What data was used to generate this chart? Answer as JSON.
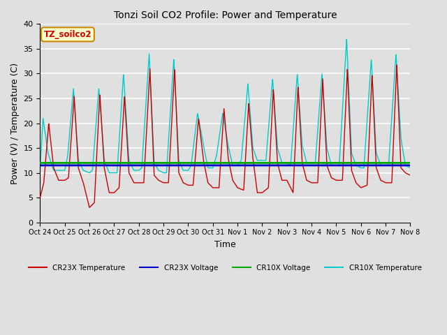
{
  "title": "Tonzi Soil CO2 Profile: Power and Temperature",
  "xlabel": "Time",
  "ylabel": "Power (V) / Temperature (C)",
  "xlim": [
    0,
    15
  ],
  "ylim": [
    0,
    40
  ],
  "yticks": [
    0,
    5,
    10,
    15,
    20,
    25,
    30,
    35,
    40
  ],
  "xtick_labels": [
    "Oct 24",
    "Oct 25",
    "Oct 26",
    "Oct 27",
    "Oct 28",
    "Oct 29",
    "Oct 30",
    "Oct 31",
    "Nov 1",
    "Nov 2",
    "Nov 3",
    "Nov 4",
    "Nov 5",
    "Nov 6",
    "Nov 7",
    "Nov 8"
  ],
  "background_color": "#e0e0e0",
  "grid_color": "#ffffff",
  "cr23x_voltage_value": 11.5,
  "cr10x_voltage_value": 12.0,
  "legend_labels": [
    "CR23X Temperature",
    "CR23X Voltage",
    "CR10X Voltage",
    "CR10X Temperature"
  ],
  "legend_colors": [
    "#cc0000",
    "#0000cc",
    "#00aa00",
    "#00cccc"
  ],
  "annotation_text": "TZ_soilco2",
  "annotation_bg": "#ffffcc",
  "annotation_border": "#cc8800",
  "cr23x_ctrl_t": [
    0.0,
    0.15,
    0.35,
    0.55,
    0.75,
    1.0,
    1.15,
    1.38,
    1.55,
    1.75,
    2.0,
    2.2,
    2.42,
    2.6,
    2.8,
    3.0,
    3.2,
    3.42,
    3.6,
    3.8,
    4.0,
    4.2,
    4.45,
    4.62,
    4.8,
    5.0,
    5.2,
    5.45,
    5.62,
    5.8,
    6.0,
    6.2,
    6.42,
    6.62,
    6.8,
    7.0,
    7.25,
    7.45,
    7.62,
    7.8,
    8.0,
    8.25,
    8.45,
    8.62,
    8.8,
    9.0,
    9.25,
    9.45,
    9.62,
    9.8,
    10.0,
    10.25,
    10.45,
    10.62,
    10.8,
    11.0,
    11.25,
    11.45,
    11.62,
    11.8,
    12.0,
    12.25,
    12.45,
    12.62,
    12.8,
    13.0,
    13.25,
    13.45,
    13.62,
    13.8,
    14.0,
    14.25,
    14.45,
    14.62,
    14.8,
    15.0
  ],
  "cr23x_ctrl_y": [
    5.0,
    8.0,
    20.0,
    11.0,
    8.5,
    8.5,
    9.0,
    25.5,
    11.0,
    8.0,
    3.0,
    4.0,
    26.0,
    11.0,
    6.0,
    6.0,
    7.0,
    25.5,
    10.0,
    8.0,
    8.0,
    8.0,
    31.0,
    9.5,
    8.5,
    8.0,
    8.0,
    31.0,
    10.0,
    8.0,
    7.5,
    7.5,
    21.0,
    12.5,
    8.0,
    7.0,
    7.0,
    23.0,
    13.0,
    8.5,
    7.0,
    6.5,
    24.0,
    13.0,
    6.0,
    6.0,
    7.0,
    27.0,
    12.0,
    8.5,
    8.5,
    6.0,
    27.5,
    12.0,
    8.5,
    8.0,
    8.0,
    29.0,
    11.5,
    9.0,
    8.5,
    8.5,
    31.0,
    10.5,
    8.0,
    7.0,
    7.5,
    30.0,
    11.0,
    8.5,
    8.0,
    8.0,
    32.0,
    11.0,
    10.0,
    9.5
  ],
  "cr10x_ctrl_t": [
    0.0,
    0.12,
    0.32,
    0.55,
    0.75,
    1.0,
    1.12,
    1.35,
    1.55,
    1.75,
    2.0,
    2.12,
    2.38,
    2.6,
    2.8,
    3.0,
    3.12,
    3.38,
    3.6,
    3.8,
    4.0,
    4.12,
    4.42,
    4.62,
    4.8,
    5.0,
    5.12,
    5.42,
    5.62,
    5.8,
    6.0,
    6.12,
    6.38,
    6.62,
    6.8,
    7.0,
    7.15,
    7.4,
    7.62,
    7.8,
    8.0,
    8.15,
    8.42,
    8.62,
    8.8,
    9.0,
    9.15,
    9.42,
    9.62,
    9.8,
    10.0,
    10.15,
    10.42,
    10.62,
    10.8,
    11.0,
    11.15,
    11.42,
    11.62,
    11.8,
    12.0,
    12.12,
    12.42,
    12.62,
    12.8,
    13.0,
    13.12,
    13.42,
    13.62,
    13.8,
    14.0,
    14.12,
    14.42,
    14.62,
    14.8,
    15.0
  ],
  "cr10x_ctrl_y": [
    11.0,
    21.0,
    14.0,
    10.5,
    10.5,
    10.5,
    13.5,
    27.0,
    12.5,
    10.5,
    10.0,
    10.5,
    27.0,
    12.5,
    10.0,
    10.0,
    10.0,
    30.0,
    12.5,
    10.5,
    10.5,
    11.0,
    34.0,
    12.0,
    10.5,
    10.0,
    10.0,
    33.0,
    12.5,
    10.5,
    10.5,
    11.5,
    22.0,
    15.5,
    11.0,
    11.0,
    13.5,
    22.0,
    15.5,
    11.5,
    11.5,
    12.5,
    28.0,
    15.0,
    12.5,
    12.5,
    12.5,
    29.0,
    15.0,
    12.0,
    12.0,
    11.5,
    30.0,
    15.5,
    12.0,
    12.0,
    12.0,
    30.0,
    15.0,
    11.5,
    11.5,
    11.5,
    37.0,
    14.0,
    11.5,
    11.0,
    11.0,
    33.0,
    14.0,
    11.5,
    11.5,
    11.5,
    34.0,
    17.0,
    11.5,
    11.0
  ]
}
